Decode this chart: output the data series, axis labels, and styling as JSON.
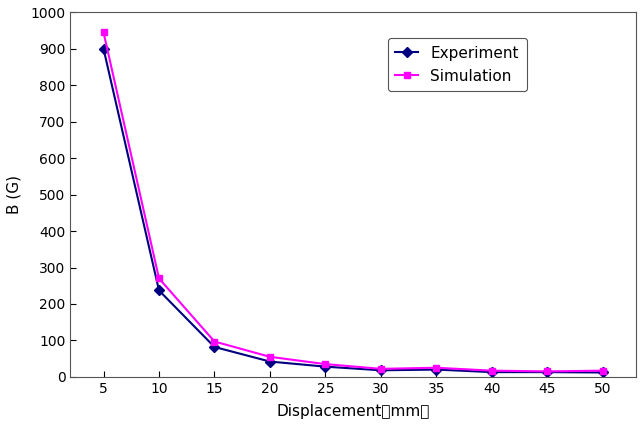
{
  "experiment_x": [
    5,
    10,
    15,
    20,
    25,
    30,
    35,
    40,
    45,
    50
  ],
  "experiment_y": [
    900,
    237,
    82,
    42,
    28,
    18,
    20,
    13,
    13,
    12
  ],
  "simulation_x": [
    5,
    10,
    15,
    20,
    25,
    30,
    35,
    40,
    45,
    50
  ],
  "simulation_y": [
    945,
    270,
    97,
    55,
    35,
    22,
    25,
    17,
    15,
    17
  ],
  "experiment_color": "#000080",
  "simulation_color": "#ff00ff",
  "xlabel": "Displacement（mm）",
  "ylabel": "B (G)",
  "xlim": [
    2,
    53
  ],
  "ylim": [
    0,
    1000
  ],
  "xticks": [
    5,
    10,
    15,
    20,
    25,
    30,
    35,
    40,
    45,
    50
  ],
  "yticks": [
    0,
    100,
    200,
    300,
    400,
    500,
    600,
    700,
    800,
    900,
    1000
  ],
  "legend_experiment": "Experiment",
  "legend_simulation": "Simulation",
  "figure_facecolor": "#ffffff",
  "axes_facecolor": "#ffffff"
}
